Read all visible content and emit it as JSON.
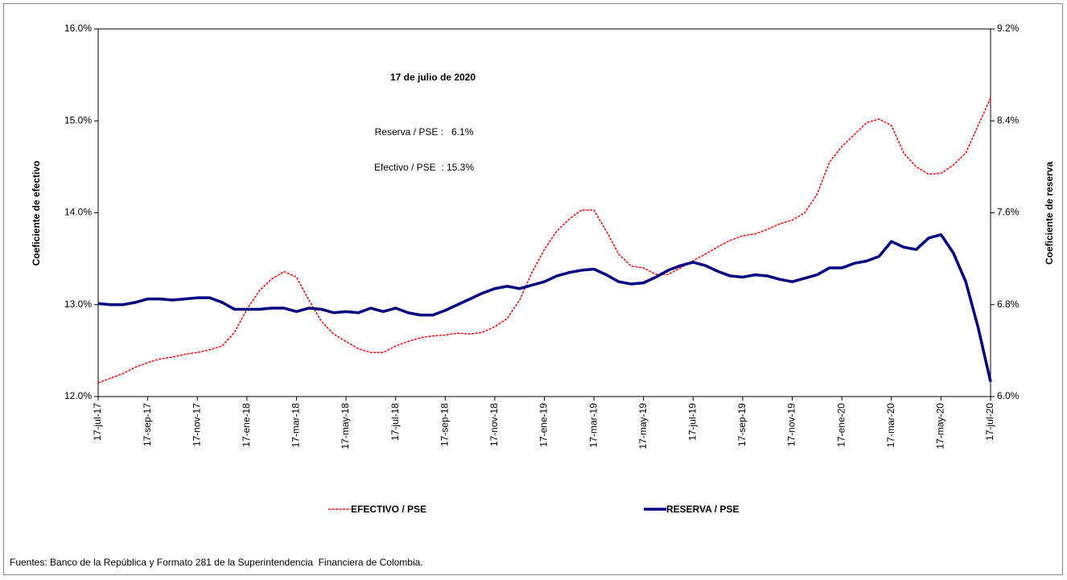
{
  "chart_data": {
    "type": "line",
    "annotations": [
      "17 de julio de 2020",
      "Reserva / PSE :   6.1%",
      "Efectivo / PSE  : 15.3%"
    ],
    "ylabel": "Coeficiente de efectivo",
    "y2label": "Coeficiente de reserva",
    "source": "Fuentes: Banco de la República y Formato 281 de la Superintendencia  Financiera de Colombia.",
    "categories": [
      "17-jul-17",
      null,
      null,
      null,
      "17-sep-17",
      null,
      null,
      null,
      "17-nov-17",
      null,
      null,
      null,
      "17-ene-18",
      null,
      null,
      null,
      "17-mar-18",
      null,
      null,
      null,
      "17-may-18",
      null,
      null,
      null,
      "17-jul-18",
      null,
      null,
      null,
      "17-sep-18",
      null,
      null,
      null,
      "17-nov-18",
      null,
      null,
      null,
      "17-ene-19",
      null,
      null,
      null,
      "17-mar-19",
      null,
      null,
      null,
      "17-may-19",
      null,
      null,
      null,
      "17-jul-19",
      null,
      null,
      null,
      "17-sep-19",
      null,
      null,
      null,
      "17-nov-19",
      null,
      null,
      null,
      "17-ene-20",
      null,
      null,
      null,
      "17-mar-20",
      null,
      null,
      null,
      "17-may-20",
      null,
      null,
      null,
      "17-jul-20"
    ],
    "series": [
      {
        "name": "EFECTIVO / PSE",
        "color": "#ff0000",
        "axis": "y",
        "values": [
          12.15,
          12.2,
          12.25,
          12.32,
          12.37,
          12.41,
          12.43,
          12.46,
          12.48,
          12.51,
          12.55,
          12.7,
          12.95,
          13.15,
          13.28,
          13.36,
          13.3,
          13.05,
          12.82,
          12.68,
          12.6,
          12.52,
          12.48,
          12.48,
          12.55,
          12.6,
          12.64,
          12.66,
          12.67,
          12.69,
          12.68,
          12.7,
          12.76,
          12.85,
          13.05,
          13.35,
          13.6,
          13.8,
          13.93,
          14.03,
          14.03,
          13.8,
          13.55,
          13.42,
          13.4,
          13.33,
          13.33,
          13.4,
          13.48,
          13.55,
          13.63,
          13.7,
          13.75,
          13.77,
          13.82,
          13.88,
          13.92,
          14.0,
          14.2,
          14.55,
          14.72,
          14.85,
          14.98,
          15.02,
          14.95,
          14.65,
          14.5,
          14.42,
          14.43,
          14.52,
          14.65,
          14.95,
          15.25
        ]
      },
      {
        "name": "RESERVA / PSE",
        "color": "#000080",
        "axis": "y2",
        "values": [
          6.81,
          6.8,
          6.8,
          6.82,
          6.85,
          6.85,
          6.84,
          6.85,
          6.86,
          6.86,
          6.82,
          6.76,
          6.76,
          6.76,
          6.77,
          6.77,
          6.74,
          6.77,
          6.76,
          6.73,
          6.74,
          6.73,
          6.77,
          6.74,
          6.77,
          6.73,
          6.71,
          6.71,
          6.75,
          6.8,
          6.85,
          6.9,
          6.94,
          6.96,
          6.94,
          6.97,
          7.0,
          7.05,
          7.08,
          7.1,
          7.11,
          7.06,
          7.0,
          6.98,
          6.99,
          7.04,
          7.1,
          7.14,
          7.17,
          7.14,
          7.09,
          7.05,
          7.04,
          7.06,
          7.05,
          7.02,
          7.0,
          7.03,
          7.06,
          7.12,
          7.12,
          7.16,
          7.18,
          7.22,
          7.35,
          7.3,
          7.28,
          7.38,
          7.41,
          7.25,
          7.0,
          6.6,
          6.13
        ]
      }
    ],
    "ylim": [
      12,
      16
    ],
    "yticks": [
      {
        "value": 12,
        "label": "12.0%"
      },
      {
        "value": 13,
        "label": "13.0%"
      },
      {
        "value": 14,
        "label": "14.0%"
      },
      {
        "value": 15,
        "label": "15.0%"
      },
      {
        "value": 16,
        "label": "16.0%"
      }
    ],
    "y2lim": [
      6,
      9.2
    ],
    "y2ticks": [
      {
        "value": 6,
        "label": "6.0%"
      },
      {
        "value": 6.8,
        "label": "6.8%"
      },
      {
        "value": 7.6,
        "label": "7.6%"
      },
      {
        "value": 8.4,
        "label": "8.4%"
      },
      {
        "value": 9.2,
        "label": "9.2%"
      }
    ],
    "grid": false
  }
}
